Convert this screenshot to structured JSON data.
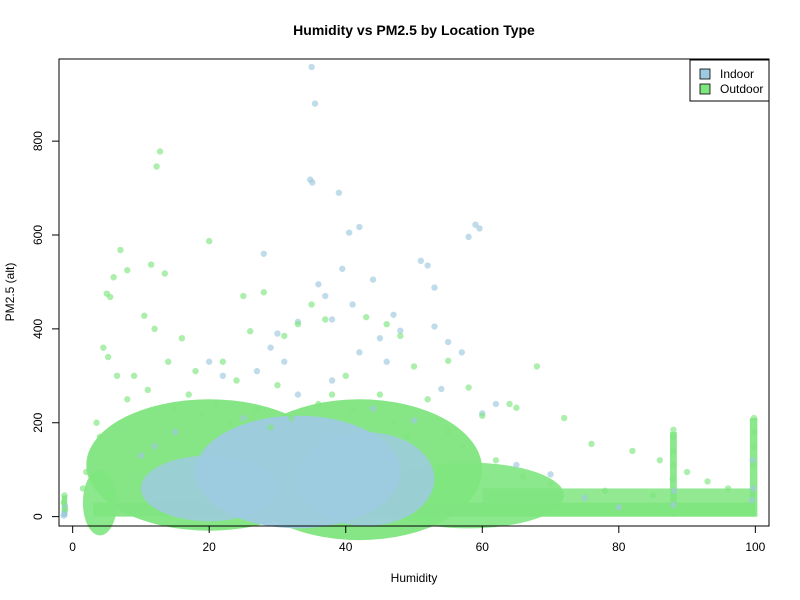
{
  "chart_data": {
    "type": "scatter",
    "title": "Humidity vs PM2.5 by Location Type",
    "xlabel": "Humidity",
    "ylabel": "PM2.5 (alt)",
    "xlim": [
      -2,
      102
    ],
    "ylim": [
      -20,
      975
    ],
    "x_ticks": [
      0,
      20,
      40,
      60,
      80,
      100
    ],
    "y_ticks": [
      0,
      200,
      400,
      600,
      800
    ],
    "legend_position": "top-right",
    "grid": false,
    "series": [
      {
        "name": "Indoor",
        "color": "#9ECAE1",
        "points": [
          [
            35,
            958
          ],
          [
            35.5,
            880
          ],
          [
            34.8,
            718
          ],
          [
            35.1,
            712
          ],
          [
            39,
            690
          ],
          [
            40.5,
            605
          ],
          [
            42,
            617
          ],
          [
            28,
            560
          ],
          [
            39.5,
            528
          ],
          [
            51,
            545
          ],
          [
            44,
            505
          ],
          [
            52,
            535
          ],
          [
            53,
            488
          ],
          [
            58,
            596
          ],
          [
            59,
            622
          ],
          [
            59.6,
            614
          ],
          [
            41,
            452
          ],
          [
            37,
            470
          ],
          [
            36,
            495
          ],
          [
            38,
            420
          ],
          [
            33,
            415
          ],
          [
            30,
            390
          ],
          [
            29,
            360
          ],
          [
            47,
            430
          ],
          [
            48,
            396
          ],
          [
            53,
            405
          ],
          [
            55,
            372
          ],
          [
            57,
            350
          ],
          [
            45,
            380
          ],
          [
            31,
            330
          ],
          [
            42,
            350
          ],
          [
            46,
            330
          ],
          [
            27,
            310
          ],
          [
            38,
            290
          ],
          [
            54,
            272
          ],
          [
            62,
            240
          ],
          [
            60,
            220
          ],
          [
            20,
            330
          ],
          [
            22,
            300
          ],
          [
            33,
            260
          ],
          [
            25,
            210
          ],
          [
            44,
            230
          ],
          [
            50,
            205
          ],
          [
            65,
            110
          ],
          [
            70,
            90
          ],
          [
            12,
            150
          ],
          [
            10,
            130
          ],
          [
            15,
            180
          ],
          [
            99.6,
            120
          ],
          [
            99.7,
            60
          ],
          [
            99.5,
            35
          ],
          [
            -1.2,
            8
          ],
          [
            -1.1,
            22
          ],
          [
            -1.3,
            2
          ],
          [
            88,
            25
          ],
          [
            88.1,
            55
          ],
          [
            75,
            40
          ],
          [
            80,
            20
          ]
        ]
      },
      {
        "name": "Outdoor",
        "color": "#7FE57F",
        "points": [
          [
            12.8,
            778
          ],
          [
            12.3,
            746
          ],
          [
            20,
            587
          ],
          [
            7,
            568
          ],
          [
            6,
            510
          ],
          [
            5,
            475
          ],
          [
            5.5,
            468
          ],
          [
            11.5,
            537
          ],
          [
            13.5,
            518
          ],
          [
            25,
            470
          ],
          [
            28,
            478
          ],
          [
            8,
            525
          ],
          [
            10.5,
            428
          ],
          [
            12,
            400
          ],
          [
            16,
            380
          ],
          [
            26,
            395
          ],
          [
            35,
            452
          ],
          [
            37,
            420
          ],
          [
            33,
            410
          ],
          [
            31,
            385
          ],
          [
            43,
            425
          ],
          [
            46,
            410
          ],
          [
            48,
            385
          ],
          [
            50,
            320
          ],
          [
            55,
            332
          ],
          [
            68,
            320
          ],
          [
            64,
            240
          ],
          [
            65,
            232
          ],
          [
            72,
            210
          ],
          [
            76,
            155
          ],
          [
            82,
            140
          ],
          [
            86,
            120
          ],
          [
            58,
            275
          ],
          [
            60,
            215
          ],
          [
            9,
            300
          ],
          [
            14,
            330
          ],
          [
            18,
            310
          ],
          [
            22,
            330
          ],
          [
            24,
            290
          ],
          [
            30,
            280
          ],
          [
            40,
            300
          ],
          [
            45,
            260
          ],
          [
            52,
            250
          ],
          [
            4.5,
            360
          ],
          [
            5.2,
            340
          ],
          [
            6.5,
            300
          ],
          [
            3.5,
            200
          ],
          [
            4,
            170
          ],
          [
            2,
            95
          ],
          [
            1.5,
            60
          ],
          [
            99.8,
            210
          ],
          [
            99.8,
            180
          ],
          [
            99.8,
            150
          ],
          [
            99.7,
            110
          ],
          [
            88,
            185
          ],
          [
            88,
            170
          ],
          [
            88,
            140
          ],
          [
            88,
            110
          ],
          [
            87.9,
            80
          ],
          [
            -1.2,
            45
          ],
          [
            -1.3,
            30
          ],
          [
            -1.1,
            15
          ],
          [
            90,
            95
          ],
          [
            93,
            75
          ],
          [
            96,
            60
          ],
          [
            85,
            45
          ],
          [
            78,
            55
          ],
          [
            70,
            70
          ],
          [
            66,
            85
          ],
          [
            62,
            120
          ],
          [
            57,
            150
          ],
          [
            55,
            180
          ],
          [
            8,
            250
          ],
          [
            11,
            270
          ],
          [
            15,
            230
          ],
          [
            17,
            260
          ],
          [
            19,
            220
          ],
          [
            21,
            240
          ],
          [
            23,
            200
          ],
          [
            27,
            230
          ],
          [
            29,
            190
          ],
          [
            32,
            210
          ],
          [
            36,
            240
          ],
          [
            38,
            260
          ],
          [
            41,
            230
          ],
          [
            47,
            200
          ],
          [
            49,
            170
          ]
        ]
      }
    ]
  }
}
